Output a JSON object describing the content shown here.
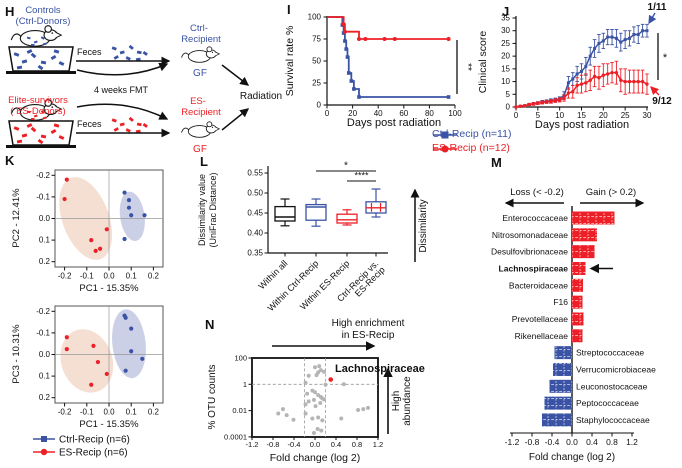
{
  "colors": {
    "blue": "#3a53a4",
    "red": "#ec2026",
    "black": "#1a1a1a",
    "gray_point": "#b5b5b5",
    "ellipse_red": "#f4ddd0",
    "ellipse_blue": "#c9cee6"
  },
  "panel_h": {
    "label": "H",
    "controls1": "Controls",
    "controls2": "(Ctrl-Donors)",
    "es1": "Elite-survivors",
    "es2": "( ES-Donors)",
    "feces1": "Feces",
    "feces2": "Feces",
    "fmt": "4 weeks FMT",
    "ctrl_r1": "Ctrl-",
    "ctrl_r2": "Recipient",
    "es_r1": "ES-",
    "es_r2": "Recipient",
    "gf1": "GF",
    "gf2": "GF",
    "radiation": "Radiation"
  },
  "legends": {
    "ij": [
      {
        "label": "Ctrl-Recip (n=11)",
        "color": "blue",
        "marker": "square"
      },
      {
        "label": "ES-Recip (n=12)",
        "color": "red",
        "marker": "circle"
      }
    ],
    "k": [
      {
        "label": "Ctrl-Recip (n=6)",
        "color": "blue",
        "marker": "square"
      },
      {
        "label": "ES-Recip (n=6)",
        "color": "red",
        "marker": "circle"
      }
    ]
  },
  "chart_data": [
    {
      "id": "survival",
      "panel": "I",
      "type": "line",
      "xlabel": "Days post radiation",
      "ylabel": "Survival rate %",
      "xlim": [
        0,
        100
      ],
      "xticks": [
        0,
        20,
        40,
        60,
        80,
        100
      ],
      "ylim": [
        0,
        100
      ],
      "yticks": [
        0,
        25,
        50,
        75,
        100
      ],
      "significance": "**",
      "series": [
        {
          "name": "Ctrl-Recip (n=11)",
          "color": "blue",
          "marker": "square",
          "x": [
            0,
            12,
            13,
            14,
            15,
            16,
            17,
            19,
            21,
            25,
            95
          ],
          "y": [
            100,
            90.9,
            81.8,
            72.7,
            63.6,
            54.5,
            36.4,
            27.3,
            18.2,
            9.1,
            9.1
          ]
        },
        {
          "name": "ES-Recip (n=12)",
          "color": "red",
          "marker": "circle",
          "x": [
            0,
            13,
            14,
            25,
            30,
            45,
            53,
            95
          ],
          "y": [
            100,
            91.7,
            83.3,
            75,
            75,
            75,
            75,
            75
          ]
        }
      ]
    },
    {
      "id": "clinical",
      "panel": "J",
      "type": "line",
      "xlabel": "Days post radiation",
      "ylabel": "Clinical score",
      "xlim": [
        0,
        30
      ],
      "xticks": [
        0,
        5,
        10,
        15,
        20,
        25,
        30
      ],
      "ylim": [
        0,
        35
      ],
      "yticks": [
        0,
        5,
        10,
        15,
        20,
        25,
        30,
        35
      ],
      "significance": "*",
      "annotations": [
        {
          "text": "1/11",
          "color": "blue"
        },
        {
          "text": "9/12",
          "color": "red"
        }
      ],
      "series": [
        {
          "name": "Ctrl-Recip (n=11)",
          "color": "blue",
          "marker": "square",
          "x": [
            0,
            1,
            2,
            3,
            4,
            5,
            6,
            7,
            8,
            9,
            10,
            11,
            12,
            13,
            14,
            15,
            16,
            17,
            18,
            19,
            20,
            21,
            22,
            23,
            24,
            25,
            26,
            27,
            28,
            29,
            30
          ],
          "y": [
            0,
            0.3,
            0.5,
            1,
            1.3,
            1.6,
            2,
            2.2,
            2.5,
            2.8,
            3.2,
            4.5,
            9.5,
            11,
            13,
            14,
            16,
            20,
            23,
            25,
            26,
            27.5,
            27.5,
            27,
            25.5,
            26.5,
            27,
            28.5,
            28.5,
            30,
            30
          ],
          "err": [
            0,
            0.3,
            0.3,
            0.4,
            0.5,
            0.5,
            0.6,
            0.6,
            0.7,
            0.7,
            0.8,
            1.5,
            2.5,
            2.5,
            3,
            3,
            3.5,
            3.5,
            3.5,
            3.5,
            3,
            3,
            3,
            3.5,
            3.5,
            3.5,
            3,
            3,
            3.5,
            2.5,
            2.5
          ]
        },
        {
          "name": "ES-Recip (n=12)",
          "color": "red",
          "marker": "circle",
          "x": [
            0,
            1,
            2,
            3,
            4,
            5,
            6,
            7,
            8,
            9,
            10,
            11,
            12,
            13,
            14,
            15,
            16,
            17,
            18,
            19,
            20,
            21,
            22,
            23,
            24,
            25,
            26,
            27,
            28,
            29,
            30
          ],
          "y": [
            0,
            0.3,
            0.5,
            1,
            1.2,
            1.5,
            1.8,
            2,
            2.2,
            2.5,
            2.8,
            3.5,
            5.5,
            6,
            8.5,
            9,
            9.5,
            10.5,
            12,
            11.5,
            12.5,
            13,
            13.5,
            13.5,
            10.5,
            10,
            10,
            10,
            10,
            10,
            9
          ],
          "err": [
            0,
            0.3,
            0.3,
            0.4,
            0.5,
            0.5,
            0.6,
            0.6,
            0.7,
            0.7,
            0.8,
            1.2,
            2,
            2.5,
            3,
            3.5,
            3.5,
            4,
            4,
            4.5,
            4.5,
            4,
            4,
            4.5,
            4.5,
            5,
            4.5,
            4.5,
            4.5,
            4.5,
            4
          ]
        }
      ]
    },
    {
      "id": "pca_top",
      "panel": "K",
      "type": "scatter",
      "xlabel": "PC1 - 15.35%",
      "ylabel": "PC2 - 12.41%",
      "tick_values": [
        -0.2,
        -0.1,
        0,
        0.1,
        0.2
      ],
      "tick_labels": [
        "-0.2",
        "-0.1",
        "0.0",
        "0.1",
        "0.2"
      ],
      "groups": [
        {
          "name": "Ctrl-Recip (n=6)",
          "color": "blue",
          "ellipse": {
            "cx": 0.105,
            "cy": 0.01,
            "rx": 0.055,
            "ry": 0.115,
            "rot": -8
          },
          "points": [
            [
              0.07,
              0.12
            ],
            [
              0.09,
              0.085
            ],
            [
              0.09,
              0.05
            ],
            [
              0.1,
              0.015
            ],
            [
              0.16,
              0.015
            ],
            [
              0.07,
              -0.095
            ]
          ]
        },
        {
          "name": "ES-Recip (n=6)",
          "color": "red",
          "ellipse": {
            "cx": -0.105,
            "cy": 0.0,
            "rx": 0.105,
            "ry": 0.2,
            "rot": -20
          },
          "points": [
            [
              -0.19,
              0.18
            ],
            [
              -0.2,
              0.09
            ],
            [
              -0.01,
              -0.05
            ],
            [
              -0.08,
              -0.1
            ],
            [
              -0.06,
              -0.15
            ],
            [
              -0.04,
              -0.14
            ]
          ]
        }
      ]
    },
    {
      "id": "pca_bottom",
      "panel": "",
      "type": "scatter",
      "xlabel": "PC1 - 15.35%",
      "ylabel": "PC3 - 10.31%",
      "tick_values": [
        -0.2,
        -0.1,
        0,
        0.1,
        0.2
      ],
      "tick_labels": [
        "-0.2",
        "-0.1",
        "0.0",
        "0.1",
        "0.2"
      ],
      "groups": [
        {
          "name": "Ctrl-Recip (n=6)",
          "color": "blue",
          "ellipse": {
            "cx": 0.09,
            "cy": 0.05,
            "rx": 0.075,
            "ry": 0.16,
            "rot": -6
          },
          "points": [
            [
              0.07,
              0.18
            ],
            [
              0.075,
              0.17
            ],
            [
              0.1,
              0.12
            ],
            [
              0.1,
              0.015
            ],
            [
              0.15,
              -0.02
            ],
            [
              0.075,
              -0.075
            ]
          ]
        },
        {
          "name": "ES-Recip (n=6)",
          "color": "red",
          "ellipse": {
            "cx": -0.1,
            "cy": -0.03,
            "rx": 0.115,
            "ry": 0.15,
            "rot": -20
          },
          "points": [
            [
              -0.19,
              0.08
            ],
            [
              -0.19,
              0.025
            ],
            [
              -0.07,
              0.04
            ],
            [
              -0.05,
              -0.035
            ],
            [
              -0.01,
              -0.09
            ],
            [
              -0.08,
              -0.14
            ]
          ]
        }
      ]
    },
    {
      "id": "dissimilarity",
      "panel": "L",
      "type": "box",
      "ylabel_lines": [
        "Dissimilarity value",
        "(UniFrac Distance)"
      ],
      "ylim": [
        0.35,
        0.55
      ],
      "yticks": [
        0.35,
        0.4,
        0.45,
        0.5,
        0.55
      ],
      "ytick_labels": [
        "0.35",
        "0.40",
        "0.45",
        "0.50",
        "0.55"
      ],
      "categories": [
        [
          "Within all"
        ],
        [
          "Within Ctrl-Recip"
        ],
        [
          "Within ES-Recip"
        ],
        [
          "Ctrl-Recip vs.",
          "ES-Recip"
        ]
      ],
      "boxes": [
        {
          "color": "black",
          "lo": 0.418,
          "q1": 0.43,
          "med": 0.44,
          "q3": 0.466,
          "hi": 0.485
        },
        {
          "color": "blue",
          "lo": 0.417,
          "q1": 0.432,
          "med": 0.465,
          "q3": 0.471,
          "hi": 0.485
        },
        {
          "color": "red",
          "lo": 0.42,
          "q1": 0.425,
          "med": 0.433,
          "q3": 0.447,
          "hi": 0.458
        },
        {
          "color": "mixed",
          "lo": 0.44,
          "q1": 0.45,
          "med": 0.463,
          "q3": 0.478,
          "hi": 0.51
        }
      ],
      "sig": [
        {
          "from": 1,
          "to": 3,
          "label": "*"
        },
        {
          "from": 2,
          "to": 3,
          "label": "****"
        }
      ],
      "arrow_label": "Dissimilarity"
    },
    {
      "id": "foldchange",
      "panel": "M",
      "type": "bar",
      "xlabel": "Fold change (log 2)",
      "loss_header": "Loss (< -0.2)",
      "gain_header": "Gain (> 0.2)",
      "xticks": [
        -1.2,
        -0.8,
        -0.4,
        0,
        0.4,
        0.8,
        1.2
      ],
      "xtick_labels": [
        "-1.2",
        "-0.8",
        "-0.4",
        "0.0",
        "0.4",
        "0.8",
        "1.2"
      ],
      "bars": [
        {
          "label": "Enterococcaceae",
          "value": 0.85,
          "color": "red"
        },
        {
          "label": "Nitrosomonadaceae",
          "value": 0.5,
          "color": "red"
        },
        {
          "label": "Desulfovibrionaceae",
          "value": 0.45,
          "color": "red"
        },
        {
          "label": "Lachnospiraceae",
          "value": 0.27,
          "color": "red",
          "bold": true,
          "arrow": true
        },
        {
          "label": "Bacteroidaceae",
          "value": 0.22,
          "color": "red"
        },
        {
          "label": "F16",
          "value": 0.21,
          "color": "red"
        },
        {
          "label": "Prevotellaceae",
          "value": 0.23,
          "color": "red"
        },
        {
          "label": "Rikenellaceae",
          "value": 0.21,
          "color": "red"
        },
        {
          "label": "Streptococcaceae",
          "value": -0.35,
          "color": "blue"
        },
        {
          "label": "Verrucomicrobiaceae",
          "value": -0.38,
          "color": "blue"
        },
        {
          "label": "Leuconostocaceae",
          "value": -0.45,
          "color": "blue"
        },
        {
          "label": "Peptococcaceae",
          "value": -0.55,
          "color": "blue"
        },
        {
          "label": "Staphylococcaceae",
          "value": -0.6,
          "color": "blue"
        }
      ]
    },
    {
      "id": "otu",
      "panel": "N",
      "type": "scatter",
      "title_lines": [
        "High enrichment",
        "in ES-Recip"
      ],
      "xlabel": "Fold change (log 2)",
      "ylabel": "% OTU counts",
      "xticks": [
        -1.2,
        -0.8,
        -0.4,
        0,
        0.4,
        0.8,
        1.2
      ],
      "xtick_labels": [
        "-1.2",
        "-0.8",
        "-0.4",
        "0.0",
        "0.4",
        "0.8",
        "1.2"
      ],
      "ytick_values": [
        100,
        1,
        0.01,
        0.0001
      ],
      "ytick_labels": [
        "100",
        "1",
        "0.01",
        "0.0001"
      ],
      "thresholds": {
        "x": [
          -0.2,
          0.2
        ],
        "y": 1
      },
      "side_labels": [
        "High",
        "abundance"
      ],
      "highlight": {
        "label": "Lachnospiraceae",
        "x": 0.3,
        "y": 2.3,
        "color": "red"
      },
      "points": [
        [
          -0.12,
          4.5
        ],
        [
          0.0,
          20
        ],
        [
          0.08,
          24
        ],
        [
          0.11,
          12
        ],
        [
          0.06,
          8
        ],
        [
          0.03,
          5
        ],
        [
          0.17,
          9
        ],
        [
          -0.18,
          1.3
        ],
        [
          0.2,
          0.95
        ],
        [
          0.55,
          1.0
        ],
        [
          -0.05,
          0.33
        ],
        [
          0.0,
          0.25
        ],
        [
          -0.15,
          0.19
        ],
        [
          0.06,
          0.15
        ],
        [
          0.11,
          0.11
        ],
        [
          0.14,
          0.085
        ],
        [
          -0.02,
          0.065
        ],
        [
          -0.12,
          0.05
        ],
        [
          0.17,
          0.072
        ],
        [
          0.1,
          0.038
        ],
        [
          0.01,
          0.022
        ],
        [
          -0.18,
          0.03
        ],
        [
          -0.61,
          0.013
        ],
        [
          -0.7,
          0.006
        ],
        [
          -0.54,
          0.0045
        ],
        [
          -0.41,
          0.002
        ],
        [
          -0.18,
          0.006
        ],
        [
          -0.05,
          0.0025
        ],
        [
          0.06,
          0.003
        ],
        [
          0.14,
          0.0018
        ],
        [
          0.5,
          0.0025
        ],
        [
          0.92,
          0.013
        ],
        [
          1.01,
          0.016
        ],
        [
          0.82,
          0.011
        ],
        [
          0.05,
          0.0004
        ],
        [
          -0.02,
          0.0002
        ],
        [
          0.12,
          0.0003
        ]
      ]
    }
  ]
}
